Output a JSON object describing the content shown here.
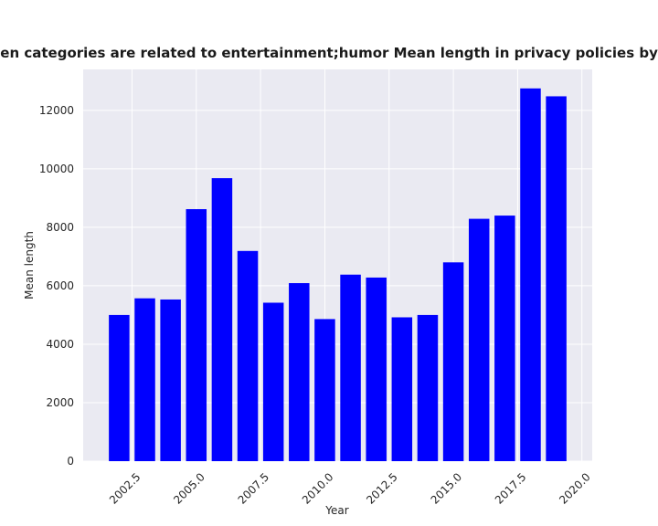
{
  "chart_data": {
    "type": "bar",
    "title": "when categories are related to entertainment;humor Mean length in privacy policies by Year",
    "xlabel": "Year",
    "ylabel": "Mean length",
    "x": [
      2002,
      2003,
      2004,
      2005,
      2006,
      2007,
      2008,
      2009,
      2010,
      2011,
      2012,
      2013,
      2014,
      2015,
      2016,
      2017,
      2018,
      2019
    ],
    "values": [
      5000,
      5570,
      5530,
      8620,
      9680,
      7190,
      5420,
      6090,
      4860,
      6380,
      6280,
      4920,
      5000,
      6800,
      8290,
      8400,
      12750,
      12480
    ],
    "xlim": [
      2000.6,
      2020.4
    ],
    "ylim": [
      0,
      13400
    ],
    "xticks": [
      2002.5,
      2005.0,
      2007.5,
      2010.0,
      2012.5,
      2015.0,
      2017.5,
      2020.0
    ],
    "xtick_labels": [
      "2002.5",
      "2005.0",
      "2007.5",
      "2010.0",
      "2012.5",
      "2015.0",
      "2017.5",
      "2020.0"
    ],
    "yticks": [
      0,
      2000,
      4000,
      6000,
      8000,
      10000,
      12000
    ],
    "ytick_labels": [
      "0",
      "2000",
      "4000",
      "6000",
      "8000",
      "10000",
      "12000"
    ],
    "bar_color": "#0000ff",
    "plot_background": "#eaeaf2",
    "grid_color": "#ffffff",
    "grid": true,
    "legend": "none"
  }
}
